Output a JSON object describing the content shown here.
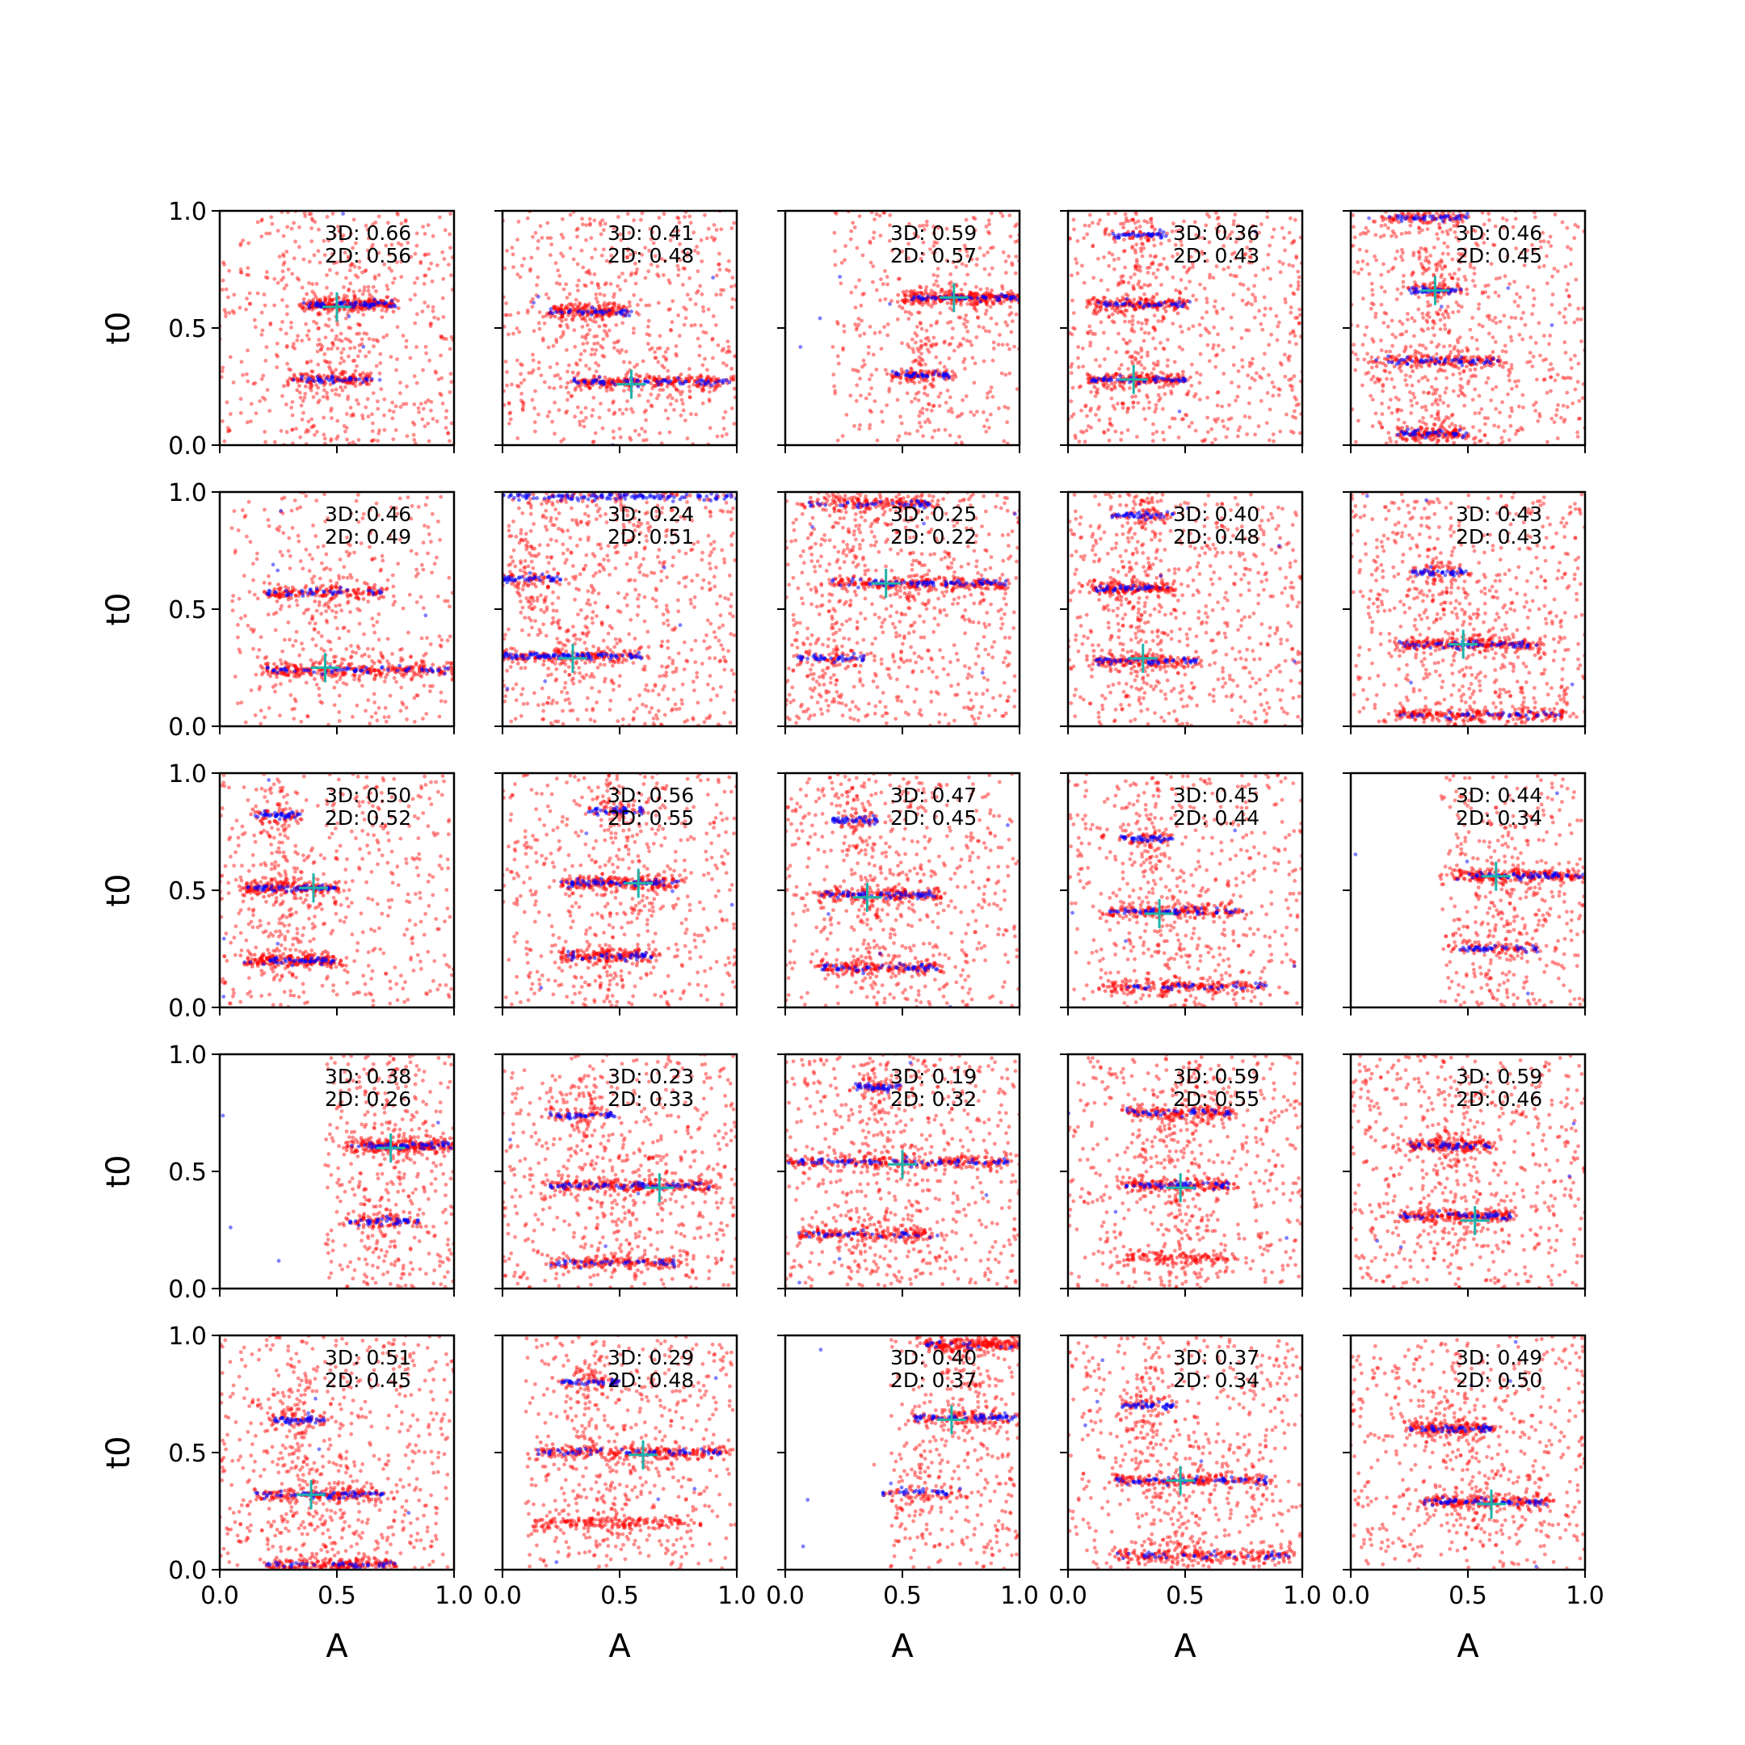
{
  "chart_data": {
    "type": "scatter",
    "grid_rows": 5,
    "grid_cols": 5,
    "xlabel": "A",
    "ylabel": "t0",
    "xlim": [
      0,
      1
    ],
    "ylim": [
      0,
      1
    ],
    "xticks": [
      0.0,
      0.5,
      1.0
    ],
    "yticks": [
      0.0,
      0.5,
      1.0
    ],
    "xtick_labels": [
      "0.0",
      "0.5",
      "1.0"
    ],
    "ytick_labels": [
      "0.0",
      "0.5",
      "1.0"
    ],
    "grid": false,
    "legend": "none",
    "colors": {
      "samples_3d": "#ff0000",
      "samples_2d": "#0000ff",
      "true_marker": "#20b2aa"
    },
    "panels": [
      {
        "row": 0,
        "col": 0,
        "score_3d": "3D: 0.66",
        "score_2d": "2D: 0.56",
        "true_point": {
          "x": 0.5,
          "y": 0.59
        },
        "bands": [
          {
            "t": 0.6,
            "a0": 0.35,
            "a1": 0.75,
            "n3": 220,
            "n2": 60
          },
          {
            "t": 0.28,
            "a0": 0.3,
            "a1": 0.65,
            "n3": 120,
            "n2": 40
          }
        ],
        "background": {
          "n": 520,
          "a0": 0.0,
          "a1": 1.0,
          "t0": 0.0,
          "t1": 1.0
        }
      },
      {
        "row": 0,
        "col": 1,
        "score_3d": "3D: 0.41",
        "score_2d": "2D: 0.48",
        "true_point": {
          "x": 0.55,
          "y": 0.26
        },
        "bands": [
          {
            "t": 0.57,
            "a0": 0.2,
            "a1": 0.55,
            "n3": 150,
            "n2": 40
          },
          {
            "t": 0.27,
            "a0": 0.3,
            "a1": 1.0,
            "n3": 220,
            "n2": 70
          }
        ],
        "background": {
          "n": 520,
          "a0": 0.0,
          "a1": 1.0,
          "t0": 0.0,
          "t1": 1.0
        }
      },
      {
        "row": 0,
        "col": 2,
        "score_3d": "3D: 0.59",
        "score_2d": "2D: 0.57",
        "true_point": {
          "x": 0.72,
          "y": 0.63
        },
        "bands": [
          {
            "t": 0.63,
            "a0": 0.5,
            "a1": 1.0,
            "n3": 260,
            "n2": 60
          },
          {
            "t": 0.3,
            "a0": 0.45,
            "a1": 0.7,
            "n3": 80,
            "n2": 40
          }
        ],
        "background": {
          "n": 360,
          "a0": 0.2,
          "a1": 1.0,
          "t0": 0.0,
          "t1": 1.0
        }
      },
      {
        "row": 0,
        "col": 3,
        "score_3d": "3D: 0.36",
        "score_2d": "2D: 0.43",
        "true_point": {
          "x": 0.28,
          "y": 0.28
        },
        "bands": [
          {
            "t": 0.9,
            "a0": 0.18,
            "a1": 0.42,
            "n3": 30,
            "n2": 40
          },
          {
            "t": 0.6,
            "a0": 0.1,
            "a1": 0.5,
            "n3": 150,
            "n2": 40
          },
          {
            "t": 0.28,
            "a0": 0.1,
            "a1": 0.5,
            "n3": 150,
            "n2": 50
          }
        ],
        "background": {
          "n": 560,
          "a0": 0.0,
          "a1": 1.0,
          "t0": 0.0,
          "t1": 1.0
        }
      },
      {
        "row": 0,
        "col": 4,
        "score_3d": "3D: 0.46",
        "score_2d": "2D: 0.45",
        "true_point": {
          "x": 0.36,
          "y": 0.66
        },
        "bands": [
          {
            "t": 0.97,
            "a0": 0.15,
            "a1": 0.5,
            "n3": 80,
            "n2": 40
          },
          {
            "t": 0.66,
            "a0": 0.25,
            "a1": 0.5,
            "n3": 50,
            "n2": 40
          },
          {
            "t": 0.36,
            "a0": 0.1,
            "a1": 0.65,
            "n3": 150,
            "n2": 50
          },
          {
            "t": 0.05,
            "a0": 0.2,
            "a1": 0.5,
            "n3": 120,
            "n2": 40
          }
        ],
        "background": {
          "n": 560,
          "a0": 0.0,
          "a1": 1.0,
          "t0": 0.0,
          "t1": 1.0
        }
      },
      {
        "row": 1,
        "col": 0,
        "score_3d": "3D: 0.46",
        "score_2d": "2D: 0.49",
        "true_point": {
          "x": 0.45,
          "y": 0.25
        },
        "bands": [
          {
            "t": 0.57,
            "a0": 0.2,
            "a1": 0.7,
            "n3": 150,
            "n2": 40
          },
          {
            "t": 0.24,
            "a0": 0.2,
            "a1": 1.0,
            "n3": 260,
            "n2": 60
          }
        ],
        "background": {
          "n": 330,
          "a0": 0.05,
          "a1": 1.0,
          "t0": 0.0,
          "t1": 1.0
        }
      },
      {
        "row": 1,
        "col": 1,
        "score_3d": "3D: 0.24",
        "score_2d": "2D: 0.51",
        "true_point": {
          "x": 0.3,
          "y": 0.29
        },
        "bands": [
          {
            "t": 0.98,
            "a0": 0.0,
            "a1": 1.0,
            "n3": 40,
            "n2": 120
          },
          {
            "t": 0.63,
            "a0": 0.0,
            "a1": 0.25,
            "n3": 40,
            "n2": 40
          },
          {
            "t": 0.3,
            "a0": 0.0,
            "a1": 0.6,
            "n3": 150,
            "n2": 100
          }
        ],
        "background": {
          "n": 620,
          "a0": 0.0,
          "a1": 1.0,
          "t0": 0.0,
          "t1": 1.0
        }
      },
      {
        "row": 1,
        "col": 2,
        "score_3d": "3D: 0.25",
        "score_2d": "2D: 0.22",
        "true_point": {
          "x": 0.43,
          "y": 0.61
        },
        "bands": [
          {
            "t": 0.95,
            "a0": 0.1,
            "a1": 0.65,
            "n3": 150,
            "n2": 40
          },
          {
            "t": 0.61,
            "a0": 0.2,
            "a1": 0.95,
            "n3": 220,
            "n2": 80
          },
          {
            "t": 0.29,
            "a0": 0.05,
            "a1": 0.35,
            "n3": 40,
            "n2": 40
          }
        ],
        "background": {
          "n": 620,
          "a0": 0.0,
          "a1": 1.0,
          "t0": 0.0,
          "t1": 1.0
        }
      },
      {
        "row": 1,
        "col": 3,
        "score_3d": "3D: 0.40",
        "score_2d": "2D: 0.48",
        "true_point": {
          "x": 0.32,
          "y": 0.29
        },
        "bands": [
          {
            "t": 0.9,
            "a0": 0.18,
            "a1": 0.45,
            "n3": 30,
            "n2": 40
          },
          {
            "t": 0.59,
            "a0": 0.1,
            "a1": 0.45,
            "n3": 150,
            "n2": 40
          },
          {
            "t": 0.28,
            "a0": 0.1,
            "a1": 0.55,
            "n3": 150,
            "n2": 50
          }
        ],
        "background": {
          "n": 580,
          "a0": 0.0,
          "a1": 1.0,
          "t0": 0.0,
          "t1": 1.0
        }
      },
      {
        "row": 1,
        "col": 4,
        "score_3d": "3D: 0.43",
        "score_2d": "2D: 0.43",
        "true_point": {
          "x": 0.48,
          "y": 0.35
        },
        "bands": [
          {
            "t": 0.66,
            "a0": 0.25,
            "a1": 0.5,
            "n3": 40,
            "n2": 40
          },
          {
            "t": 0.35,
            "a0": 0.2,
            "a1": 0.8,
            "n3": 200,
            "n2": 60
          },
          {
            "t": 0.05,
            "a0": 0.2,
            "a1": 0.9,
            "n3": 200,
            "n2": 40
          }
        ],
        "background": {
          "n": 580,
          "a0": 0.0,
          "a1": 1.0,
          "t0": 0.0,
          "t1": 1.0
        }
      },
      {
        "row": 2,
        "col": 0,
        "score_3d": "3D: 0.50",
        "score_2d": "2D: 0.52",
        "true_point": {
          "x": 0.4,
          "y": 0.51
        },
        "bands": [
          {
            "t": 0.82,
            "a0": 0.15,
            "a1": 0.35,
            "n3": 30,
            "n2": 40
          },
          {
            "t": 0.51,
            "a0": 0.1,
            "a1": 0.5,
            "n3": 180,
            "n2": 60
          },
          {
            "t": 0.2,
            "a0": 0.1,
            "a1": 0.5,
            "n3": 180,
            "n2": 50
          }
        ],
        "background": {
          "n": 460,
          "a0": 0.0,
          "a1": 1.0,
          "t0": 0.0,
          "t1": 1.0
        }
      },
      {
        "row": 2,
        "col": 1,
        "score_3d": "3D: 0.56",
        "score_2d": "2D: 0.55",
        "true_point": {
          "x": 0.58,
          "y": 0.53
        },
        "bands": [
          {
            "t": 0.84,
            "a0": 0.35,
            "a1": 0.6,
            "n3": 30,
            "n2": 40
          },
          {
            "t": 0.53,
            "a0": 0.25,
            "a1": 0.75,
            "n3": 200,
            "n2": 60
          },
          {
            "t": 0.22,
            "a0": 0.25,
            "a1": 0.65,
            "n3": 150,
            "n2": 40
          }
        ],
        "background": {
          "n": 480,
          "a0": 0.0,
          "a1": 1.0,
          "t0": 0.0,
          "t1": 1.0
        }
      },
      {
        "row": 2,
        "col": 2,
        "score_3d": "3D: 0.47",
        "score_2d": "2D: 0.45",
        "true_point": {
          "x": 0.35,
          "y": 0.47
        },
        "bands": [
          {
            "t": 0.8,
            "a0": 0.2,
            "a1": 0.4,
            "n3": 30,
            "n2": 40
          },
          {
            "t": 0.48,
            "a0": 0.15,
            "a1": 0.65,
            "n3": 180,
            "n2": 60
          },
          {
            "t": 0.17,
            "a0": 0.15,
            "a1": 0.65,
            "n3": 150,
            "n2": 50
          }
        ],
        "background": {
          "n": 500,
          "a0": 0.0,
          "a1": 1.0,
          "t0": 0.0,
          "t1": 1.0
        }
      },
      {
        "row": 2,
        "col": 3,
        "score_3d": "3D: 0.45",
        "score_2d": "2D: 0.44",
        "true_point": {
          "x": 0.39,
          "y": 0.4
        },
        "bands": [
          {
            "t": 0.72,
            "a0": 0.22,
            "a1": 0.45,
            "n3": 30,
            "n2": 40
          },
          {
            "t": 0.41,
            "a0": 0.15,
            "a1": 0.75,
            "n3": 150,
            "n2": 60
          },
          {
            "t": 0.09,
            "a0": 0.15,
            "a1": 0.85,
            "n3": 180,
            "n2": 40
          }
        ],
        "background": {
          "n": 480,
          "a0": 0.0,
          "a1": 1.0,
          "t0": 0.0,
          "t1": 1.0
        }
      },
      {
        "row": 2,
        "col": 4,
        "score_3d": "3D: 0.44",
        "score_2d": "2D: 0.34",
        "true_point": {
          "x": 0.62,
          "y": 0.56
        },
        "bands": [
          {
            "t": 0.56,
            "a0": 0.45,
            "a1": 1.0,
            "n3": 220,
            "n2": 60
          },
          {
            "t": 0.25,
            "a0": 0.45,
            "a1": 0.8,
            "n3": 60,
            "n2": 40
          }
        ],
        "background": {
          "n": 330,
          "a0": 0.38,
          "a1": 1.0,
          "t0": 0.0,
          "t1": 1.0
        }
      },
      {
        "row": 3,
        "col": 0,
        "score_3d": "3D: 0.38",
        "score_2d": "2D: 0.26",
        "true_point": {
          "x": 0.73,
          "y": 0.6
        },
        "bands": [
          {
            "t": 0.61,
            "a0": 0.55,
            "a1": 1.0,
            "n3": 220,
            "n2": 60
          },
          {
            "t": 0.29,
            "a0": 0.55,
            "a1": 0.85,
            "n3": 60,
            "n2": 40
          }
        ],
        "background": {
          "n": 340,
          "a0": 0.45,
          "a1": 1.0,
          "t0": 0.0,
          "t1": 1.0
        }
      },
      {
        "row": 3,
        "col": 1,
        "score_3d": "3D: 0.23",
        "score_2d": "2D: 0.33",
        "true_point": {
          "x": 0.67,
          "y": 0.43
        },
        "bands": [
          {
            "t": 0.74,
            "a0": 0.2,
            "a1": 0.5,
            "n3": 40,
            "n2": 40
          },
          {
            "t": 0.44,
            "a0": 0.2,
            "a1": 0.9,
            "n3": 220,
            "n2": 70
          },
          {
            "t": 0.11,
            "a0": 0.2,
            "a1": 0.75,
            "n3": 150,
            "n2": 40
          }
        ],
        "background": {
          "n": 520,
          "a0": 0.0,
          "a1": 1.0,
          "t0": 0.0,
          "t1": 1.0
        }
      },
      {
        "row": 3,
        "col": 2,
        "score_3d": "3D: 0.19",
        "score_2d": "2D: 0.32",
        "true_point": {
          "x": 0.5,
          "y": 0.53
        },
        "bands": [
          {
            "t": 0.86,
            "a0": 0.3,
            "a1": 0.5,
            "n3": 30,
            "n2": 40
          },
          {
            "t": 0.54,
            "a0": 0.0,
            "a1": 0.95,
            "n3": 220,
            "n2": 80
          },
          {
            "t": 0.23,
            "a0": 0.05,
            "a1": 0.65,
            "n3": 150,
            "n2": 40
          }
        ],
        "background": {
          "n": 580,
          "a0": 0.0,
          "a1": 1.0,
          "t0": 0.0,
          "t1": 1.0
        }
      },
      {
        "row": 3,
        "col": 3,
        "score_3d": "3D: 0.59",
        "score_2d": "2D: 0.55",
        "true_point": {
          "x": 0.48,
          "y": 0.43
        },
        "bands": [
          {
            "t": 0.75,
            "a0": 0.25,
            "a1": 0.7,
            "n3": 150,
            "n2": 40
          },
          {
            "t": 0.44,
            "a0": 0.25,
            "a1": 0.7,
            "n3": 150,
            "n2": 50
          },
          {
            "t": 0.13,
            "a0": 0.25,
            "a1": 0.7,
            "n3": 120,
            "n2": 0
          }
        ],
        "background": {
          "n": 500,
          "a0": 0.0,
          "a1": 1.0,
          "t0": 0.0,
          "t1": 1.0
        }
      },
      {
        "row": 3,
        "col": 4,
        "score_3d": "3D: 0.59",
        "score_2d": "2D: 0.46",
        "true_point": {
          "x": 0.53,
          "y": 0.29
        },
        "bands": [
          {
            "t": 0.61,
            "a0": 0.25,
            "a1": 0.6,
            "n3": 150,
            "n2": 40
          },
          {
            "t": 0.31,
            "a0": 0.2,
            "a1": 0.7,
            "n3": 180,
            "n2": 50
          }
        ],
        "background": {
          "n": 560,
          "a0": 0.0,
          "a1": 1.0,
          "t0": 0.0,
          "t1": 1.0
        }
      },
      {
        "row": 4,
        "col": 0,
        "score_3d": "3D: 0.51",
        "score_2d": "2D: 0.45",
        "true_point": {
          "x": 0.39,
          "y": 0.32
        },
        "bands": [
          {
            "t": 0.64,
            "a0": 0.22,
            "a1": 0.45,
            "n3": 40,
            "n2": 40
          },
          {
            "t": 0.32,
            "a0": 0.15,
            "a1": 0.7,
            "n3": 150,
            "n2": 60
          },
          {
            "t": 0.02,
            "a0": 0.2,
            "a1": 0.75,
            "n3": 200,
            "n2": 40
          }
        ],
        "background": {
          "n": 560,
          "a0": 0.0,
          "a1": 1.0,
          "t0": 0.0,
          "t1": 1.0
        }
      },
      {
        "row": 4,
        "col": 1,
        "score_3d": "3D: 0.29",
        "score_2d": "2D: 0.48",
        "true_point": {
          "x": 0.6,
          "y": 0.49
        },
        "bands": [
          {
            "t": 0.8,
            "a0": 0.25,
            "a1": 0.5,
            "n3": 40,
            "n2": 40
          },
          {
            "t": 0.5,
            "a0": 0.15,
            "a1": 0.95,
            "n3": 220,
            "n2": 60
          },
          {
            "t": 0.2,
            "a0": 0.15,
            "a1": 0.8,
            "n3": 150,
            "n2": 0
          }
        ],
        "background": {
          "n": 460,
          "a0": 0.1,
          "a1": 1.0,
          "t0": 0.0,
          "t1": 1.0
        }
      },
      {
        "row": 4,
        "col": 2,
        "score_3d": "3D: 0.40",
        "score_2d": "2D: 0.37",
        "true_point": {
          "x": 0.71,
          "y": 0.64
        },
        "bands": [
          {
            "t": 0.96,
            "a0": 0.6,
            "a1": 1.0,
            "n3": 200,
            "n2": 20
          },
          {
            "t": 0.65,
            "a0": 0.55,
            "a1": 1.0,
            "n3": 120,
            "n2": 60
          },
          {
            "t": 0.33,
            "a0": 0.4,
            "a1": 0.75,
            "n3": 40,
            "n2": 30
          }
        ],
        "background": {
          "n": 280,
          "a0": 0.45,
          "a1": 1.0,
          "t0": 0.0,
          "t1": 1.0
        }
      },
      {
        "row": 4,
        "col": 3,
        "score_3d": "3D: 0.37",
        "score_2d": "2D: 0.34",
        "true_point": {
          "x": 0.48,
          "y": 0.38
        },
        "bands": [
          {
            "t": 0.7,
            "a0": 0.22,
            "a1": 0.45,
            "n3": 30,
            "n2": 40
          },
          {
            "t": 0.38,
            "a0": 0.2,
            "a1": 0.85,
            "n3": 180,
            "n2": 60
          },
          {
            "t": 0.06,
            "a0": 0.2,
            "a1": 0.95,
            "n3": 200,
            "n2": 40
          }
        ],
        "background": {
          "n": 500,
          "a0": 0.0,
          "a1": 1.0,
          "t0": 0.0,
          "t1": 1.0
        }
      },
      {
        "row": 4,
        "col": 4,
        "score_3d": "3D: 0.49",
        "score_2d": "2D: 0.50",
        "true_point": {
          "x": 0.6,
          "y": 0.28
        },
        "bands": [
          {
            "t": 0.6,
            "a0": 0.25,
            "a1": 0.6,
            "n3": 150,
            "n2": 50
          },
          {
            "t": 0.29,
            "a0": 0.3,
            "a1": 0.85,
            "n3": 180,
            "n2": 60
          }
        ],
        "background": {
          "n": 540,
          "a0": 0.0,
          "a1": 1.0,
          "t0": 0.0,
          "t1": 1.0
        }
      }
    ]
  }
}
